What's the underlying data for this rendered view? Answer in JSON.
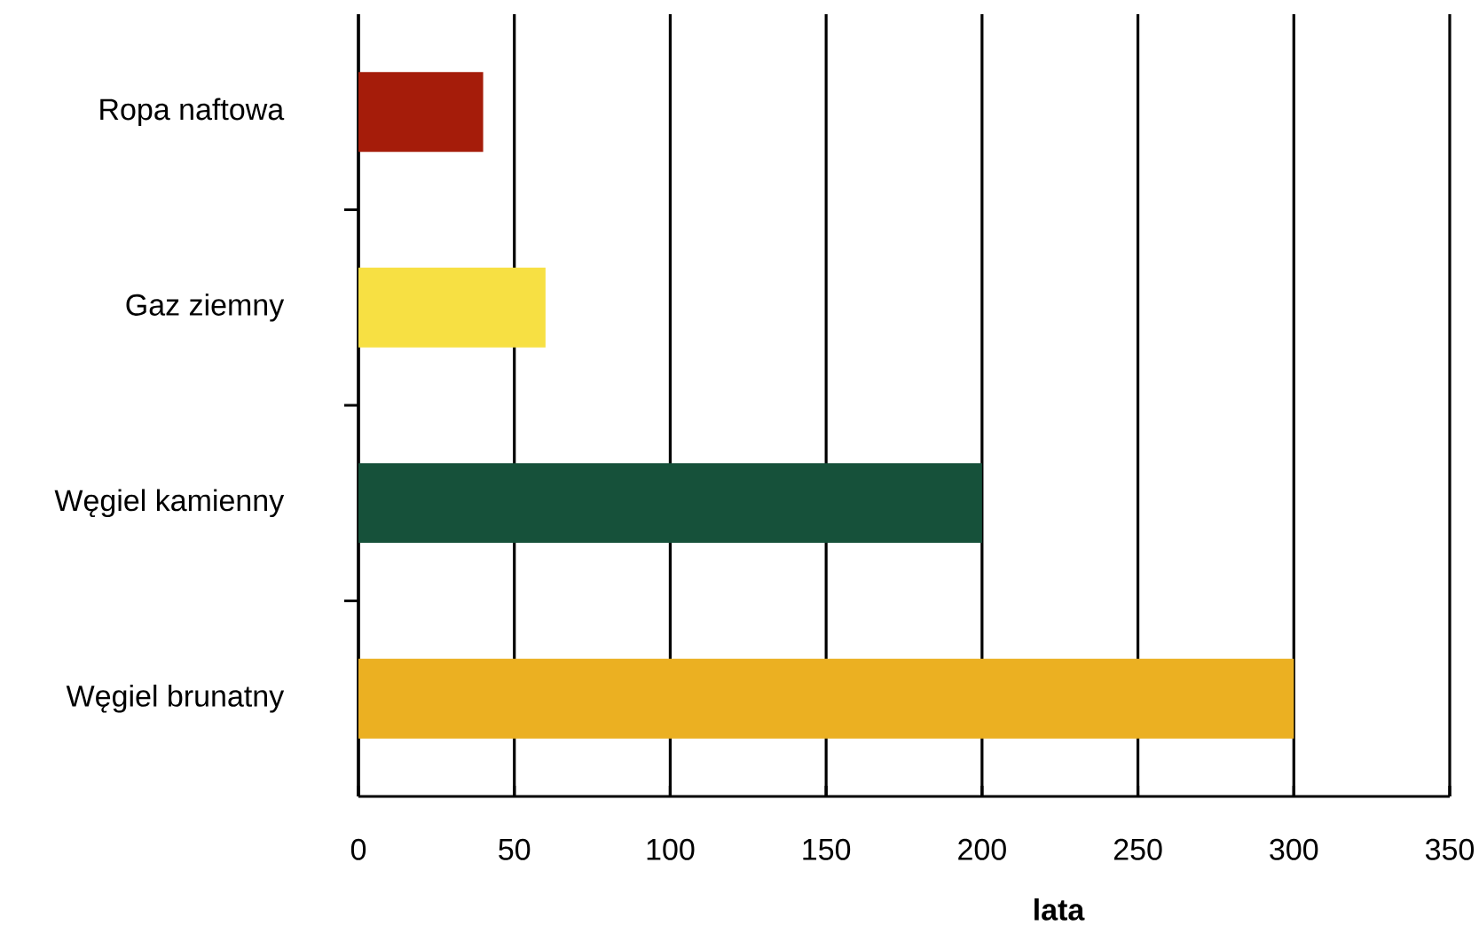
{
  "chart_data": {
    "type": "bar",
    "orientation": "horizontal",
    "xlabel": "lata",
    "categories": [
      "Ropa naftowa",
      "Gaz ziemny",
      "Węgiel kamienny",
      "Węgiel brunatny"
    ],
    "values": [
      40,
      60,
      200,
      300
    ],
    "colors": [
      "#a51c0a",
      "#f7e043",
      "#16513a",
      "#ebb022"
    ],
    "xlim": [
      0,
      350
    ],
    "xticks": [
      0,
      50,
      100,
      150,
      200,
      250,
      300,
      350
    ],
    "grid": "x"
  }
}
